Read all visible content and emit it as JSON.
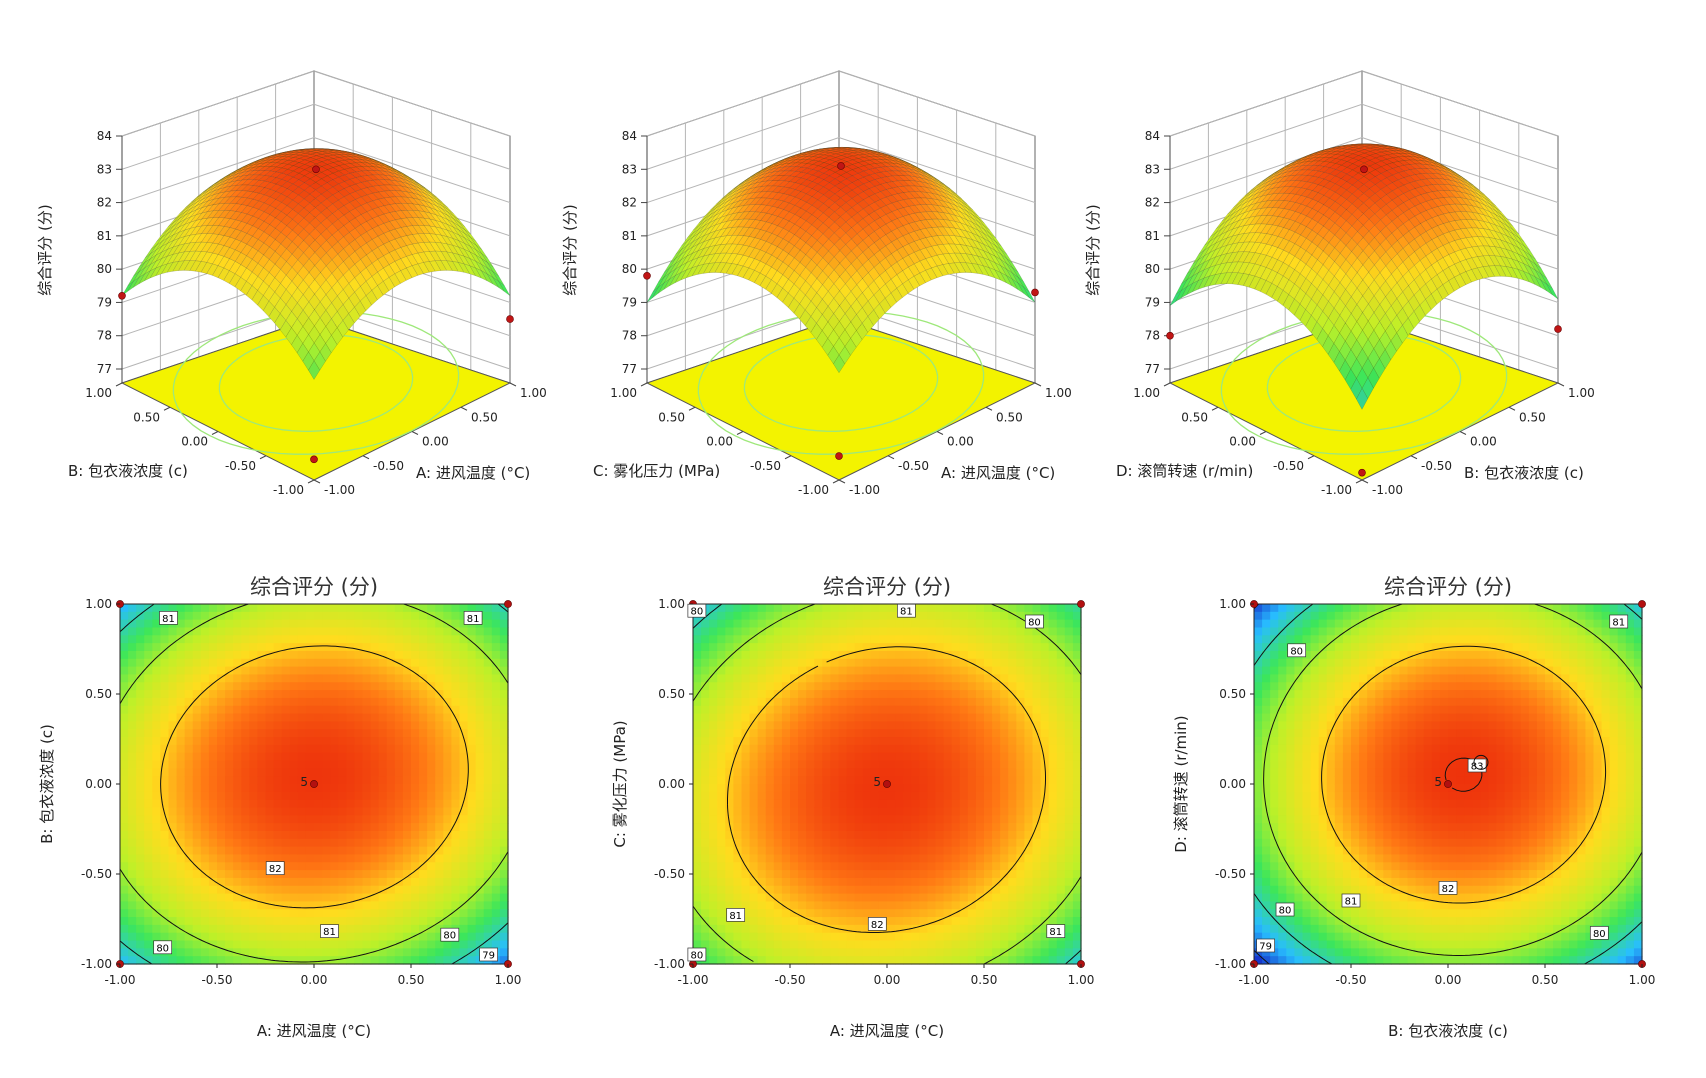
{
  "figure": {
    "surface_plots": [
      {
        "z_label": "综合评分 (分)",
        "z_ticks": [
          "77",
          "78",
          "79",
          "80",
          "81",
          "82",
          "83",
          "84"
        ],
        "x_label": "A: 进风温度 (°C)",
        "y_label": "B: 包衣液浓度 (c)",
        "x_ticks": [
          "-1.00",
          "-0.50",
          "0.00",
          "0.50",
          "1.00"
        ],
        "y_ticks": [
          "-1.00",
          "-0.50",
          "0.00",
          "0.50",
          "1.00"
        ]
      },
      {
        "z_label": "综合评分 (分)",
        "z_ticks": [
          "77",
          "78",
          "79",
          "80",
          "81",
          "82",
          "83",
          "84"
        ],
        "x_label": "A: 进风温度 (°C)",
        "y_label": "C: 雾化压力 (MPa)",
        "x_ticks": [
          "-1.00",
          "-0.50",
          "0.00",
          "0.50",
          "1.00"
        ],
        "y_ticks": [
          "-1.00",
          "-0.50",
          "0.00",
          "0.50",
          "1.00"
        ]
      },
      {
        "z_label": "综合评分 (分)",
        "z_ticks": [
          "77",
          "78",
          "79",
          "80",
          "81",
          "82",
          "83",
          "84"
        ],
        "x_label": "B: 包衣液浓度 (c)",
        "y_label": "D: 滚筒转速 (r/min)",
        "x_ticks": [
          "-1.00",
          "-0.50",
          "0.00",
          "0.50",
          "1.00"
        ],
        "y_ticks": [
          "-1.00",
          "-0.50",
          "0.00",
          "0.50",
          "1.00"
        ]
      }
    ],
    "contour_plots": [
      {
        "title": "综合评分 (分)",
        "x_label": "A: 进风温度 (°C)",
        "y_label": "B: 包衣液浓度 (c)",
        "x_ticks": [
          "-1.00",
          "-0.50",
          "0.00",
          "0.50",
          "1.00"
        ],
        "y_ticks": [
          "-1.00",
          "-0.50",
          "0.00",
          "0.50",
          "1.00"
        ],
        "center_label": "5",
        "contour_labels": [
          "81",
          "81",
          "82",
          "81",
          "80",
          "80",
          "79"
        ]
      },
      {
        "title": "综合评分 (分)",
        "x_label": "A: 进风温度 (°C)",
        "y_label": "C: 雾化压力 (MPa)",
        "x_ticks": [
          "-1.00",
          "-0.50",
          "0.00",
          "0.50",
          "1.00"
        ],
        "y_ticks": [
          "-1.00",
          "-0.50",
          "0.00",
          "0.50",
          "1.00"
        ],
        "center_label": "5",
        "contour_labels": [
          "80",
          "81",
          "80",
          "81",
          "82",
          "81",
          "80"
        ]
      },
      {
        "title": "综合评分 (分)",
        "x_label": "B: 包衣液浓度 (c)",
        "y_label": "D: 滚筒转速 (r/min)",
        "x_ticks": [
          "-1.00",
          "-0.50",
          "0.00",
          "0.50",
          "1.00"
        ],
        "y_ticks": [
          "-1.00",
          "-0.50",
          "0.00",
          "0.50",
          "1.00"
        ],
        "center_label": "5",
        "contour_labels": [
          "81",
          "80",
          "83",
          "82",
          "81",
          "80",
          "79",
          "80"
        ]
      }
    ]
  },
  "chart_data": [
    {
      "type": "surface",
      "x_factor": "A: 进风温度 (°C)",
      "y_factor": "B: 包衣液浓度 (c)",
      "x_range": [
        -1,
        1
      ],
      "y_range": [
        -1,
        1
      ],
      "zlim": [
        77,
        84
      ],
      "model": {
        "b0": 83.0,
        "bx": 0.0,
        "by": 0.0,
        "bxx": -1.8,
        "byy": -1.8,
        "bxy": 0.2
      },
      "corner_values": {
        "x-1_y-1": 77.2,
        "x1_y-1": 78.5,
        "x-1_y1": 79.2,
        "x1_y1": 79.5
      },
      "center_value": 83.0
    },
    {
      "type": "surface",
      "x_factor": "A: 进风温度 (°C)",
      "y_factor": "C: 雾化压力 (MPa)",
      "x_range": [
        -1,
        1
      ],
      "y_range": [
        -1,
        1
      ],
      "zlim": [
        77,
        84
      ],
      "model": {
        "b0": 83.0,
        "bx": 0.0,
        "by": 0.0,
        "bxx": -1.8,
        "byy": -1.8,
        "bxy": 0.4
      },
      "corner_values": {
        "x-1_y-1": 77.3,
        "x1_y-1": 79.3,
        "x-1_y1": 79.8,
        "x1_y1": 80.3
      },
      "center_value": 83.1
    },
    {
      "type": "surface",
      "x_factor": "B: 包衣液浓度 (c)",
      "y_factor": "D: 滚筒转速 (r/min)",
      "x_range": [
        -1,
        1
      ],
      "y_range": [
        -1,
        1
      ],
      "zlim": [
        77,
        84
      ],
      "model": {
        "b0": 83.0,
        "bx": 0.3,
        "by": 0.2,
        "bxx": -2.0,
        "byy": -1.9,
        "bxy": 0.1
      },
      "corner_values": {
        "x-1_y-1": 76.8,
        "x1_y-1": 78.2,
        "x-1_y1": 78.0,
        "x1_y1": 78.3
      },
      "center_value": 83.0
    },
    {
      "type": "contour",
      "x_factor": "A: 进风温度 (°C)",
      "y_factor": "B: 包衣液浓度 (c)",
      "x_range": [
        -1,
        1
      ],
      "y_range": [
        -1,
        1
      ],
      "levels": [
        79,
        80,
        81,
        82
      ],
      "model": {
        "b0": 83.0,
        "bx": 0.0,
        "by": 0.15,
        "bxx": -1.6,
        "byy": -1.9,
        "bxy": 0.2
      },
      "design_points": [
        [
          0,
          0
        ],
        [
          -1,
          -1
        ],
        [
          1,
          -1
        ],
        [
          -1,
          1
        ],
        [
          1,
          1
        ]
      ],
      "center_replicates": 5
    },
    {
      "type": "contour",
      "x_factor": "A: 进风温度 (°C)",
      "y_factor": "C: 雾化压力 (MPa)",
      "x_range": [
        -1,
        1
      ],
      "y_range": [
        -1,
        1
      ],
      "levels": [
        80,
        81,
        82
      ],
      "model": {
        "b0": 83.0,
        "bx": 0.0,
        "by": -0.1,
        "bxx": -1.5,
        "byy": -1.6,
        "bxy": 0.25
      },
      "design_points": [
        [
          0,
          0
        ],
        [
          -1,
          -1
        ],
        [
          1,
          -1
        ],
        [
          -1,
          1
        ],
        [
          1,
          1
        ]
      ],
      "center_replicates": 5
    },
    {
      "type": "contour",
      "x_factor": "B: 包衣液浓度 (c)",
      "y_factor": "D: 滚筒转速 (r/min)",
      "x_range": [
        -1,
        1
      ],
      "y_range": [
        -1,
        1
      ],
      "levels": [
        79,
        80,
        81,
        82,
        83
      ],
      "model": {
        "b0": 83.0,
        "bx": 0.3,
        "by": 0.2,
        "bxx": -1.9,
        "byy": -2.0,
        "bxy": 0.1
      },
      "design_points": [
        [
          0,
          0
        ],
        [
          -1,
          -1
        ],
        [
          1,
          -1
        ],
        [
          -1,
          1
        ],
        [
          1,
          1
        ]
      ],
      "center_replicates": 5
    }
  ]
}
